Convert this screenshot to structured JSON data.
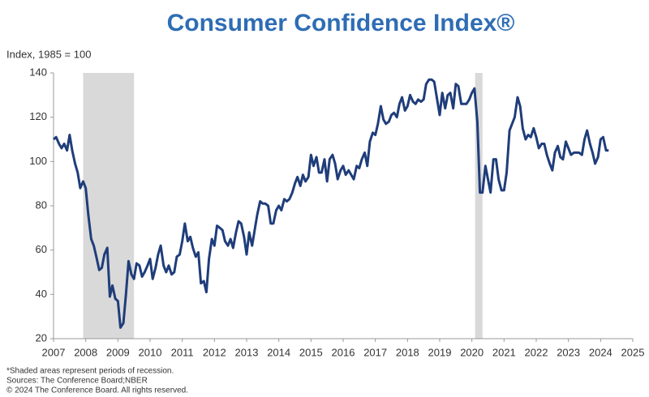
{
  "chart_data": {
    "type": "line",
    "title": "Consumer Confidence Index®",
    "y_label": "Index, 1985 = 100",
    "notes": [
      "*Shaded areas represent periods of recession.",
      "Sources: The Conference Board;NBER",
      "© 2024 The Conference Board. All rights reserved."
    ],
    "recessions": [
      {
        "start": 2007.92,
        "end": 2009.5
      },
      {
        "start": 2020.1,
        "end": 2020.33
      }
    ],
    "recession_color": "#d9d9d9",
    "xlim": [
      2007,
      2025
    ],
    "xticks": [
      2007,
      2008,
      2009,
      2010,
      2011,
      2012,
      2013,
      2014,
      2015,
      2016,
      2017,
      2018,
      2019,
      2020,
      2021,
      2022,
      2023,
      2024,
      2025
    ],
    "ylim": [
      20,
      140
    ],
    "yticks": [
      20,
      40,
      60,
      80,
      100,
      120,
      140
    ],
    "grid": false,
    "x": [
      2007.0,
      2007.08,
      2007.17,
      2007.25,
      2007.33,
      2007.42,
      2007.5,
      2007.58,
      2007.67,
      2007.75,
      2007.83,
      2007.92,
      2008.0,
      2008.08,
      2008.17,
      2008.25,
      2008.33,
      2008.42,
      2008.5,
      2008.58,
      2008.67,
      2008.75,
      2008.83,
      2008.92,
      2009.0,
      2009.08,
      2009.17,
      2009.25,
      2009.33,
      2009.42,
      2009.5,
      2009.58,
      2009.67,
      2009.75,
      2009.83,
      2009.92,
      2010.0,
      2010.08,
      2010.17,
      2010.25,
      2010.33,
      2010.42,
      2010.5,
      2010.58,
      2010.67,
      2010.75,
      2010.83,
      2010.92,
      2011.0,
      2011.08,
      2011.17,
      2011.25,
      2011.33,
      2011.42,
      2011.5,
      2011.58,
      2011.67,
      2011.75,
      2011.83,
      2011.92,
      2012.0,
      2012.08,
      2012.17,
      2012.25,
      2012.33,
      2012.42,
      2012.5,
      2012.58,
      2012.67,
      2012.75,
      2012.83,
      2012.92,
      2013.0,
      2013.08,
      2013.17,
      2013.25,
      2013.33,
      2013.42,
      2013.5,
      2013.58,
      2013.67,
      2013.75,
      2013.83,
      2013.92,
      2014.0,
      2014.08,
      2014.17,
      2014.25,
      2014.33,
      2014.42,
      2014.5,
      2014.58,
      2014.67,
      2014.75,
      2014.83,
      2014.92,
      2015.0,
      2015.08,
      2015.17,
      2015.25,
      2015.33,
      2015.42,
      2015.5,
      2015.58,
      2015.67,
      2015.75,
      2015.83,
      2015.92,
      2016.0,
      2016.08,
      2016.17,
      2016.25,
      2016.33,
      2016.42,
      2016.5,
      2016.58,
      2016.67,
      2016.75,
      2016.83,
      2016.92,
      2017.0,
      2017.08,
      2017.17,
      2017.25,
      2017.33,
      2017.42,
      2017.5,
      2017.58,
      2017.67,
      2017.75,
      2017.83,
      2017.92,
      2018.0,
      2018.08,
      2018.17,
      2018.25,
      2018.33,
      2018.42,
      2018.5,
      2018.58,
      2018.67,
      2018.75,
      2018.83,
      2018.92,
      2019.0,
      2019.08,
      2019.17,
      2019.25,
      2019.33,
      2019.42,
      2019.5,
      2019.58,
      2019.67,
      2019.75,
      2019.83,
      2019.92,
      2020.0,
      2020.08,
      2020.17,
      2020.25,
      2020.33,
      2020.42,
      2020.5,
      2020.58,
      2020.67,
      2020.75,
      2020.83,
      2020.92,
      2021.0,
      2021.08,
      2021.17,
      2021.25,
      2021.33,
      2021.42,
      2021.5,
      2021.58,
      2021.67,
      2021.75,
      2021.83,
      2021.92,
      2022.0,
      2022.08,
      2022.17,
      2022.25,
      2022.33,
      2022.42,
      2022.5,
      2022.58,
      2022.67,
      2022.75,
      2022.83,
      2022.92,
      2023.0,
      2023.08,
      2023.17,
      2023.25,
      2023.33,
      2023.42,
      2023.5,
      2023.58,
      2023.67,
      2023.75,
      2023.83,
      2023.92,
      2024.0,
      2024.08,
      2024.17,
      2024.25
    ],
    "series": [
      {
        "name": "Consumer Confidence Index",
        "color": "#1f3d7a",
        "values": [
          110,
          111,
          108,
          106,
          108,
          105,
          112,
          105,
          99,
          95,
          88,
          91,
          88,
          76,
          65,
          62,
          57,
          51,
          52,
          58,
          61,
          39,
          44,
          38,
          37,
          25,
          27,
          40,
          55,
          49,
          47,
          54,
          53,
          48,
          50,
          53,
          56,
          47,
          52,
          58,
          62,
          53,
          50,
          53,
          49,
          50,
          57,
          58,
          64,
          72,
          64,
          66,
          61,
          57,
          59,
          45,
          46,
          41,
          56,
          65,
          62,
          71,
          70,
          69,
          64,
          62,
          65,
          61,
          68,
          73,
          72,
          66,
          58,
          68,
          62,
          69,
          76,
          82,
          81,
          81,
          80,
          72,
          72,
          78,
          80,
          78,
          83,
          82,
          83,
          86,
          90,
          93,
          89,
          94,
          91,
          93,
          103,
          98,
          102,
          95,
          95,
          101,
          91,
          101,
          103,
          99,
          92,
          96,
          98,
          94,
          96,
          94,
          92,
          98,
          97,
          101,
          104,
          98,
          109,
          113,
          112,
          117,
          125,
          119,
          117,
          118,
          121,
          122,
          120,
          126,
          129,
          123,
          125,
          130,
          127,
          126,
          128,
          127,
          128,
          135,
          137,
          137,
          136,
          128,
          121,
          131,
          124,
          130,
          131,
          124,
          135,
          134,
          126,
          126,
          126,
          128,
          131,
          133,
          118,
          86,
          86,
          98,
          92,
          86,
          101,
          101,
          92,
          87,
          87,
          95,
          114,
          117,
          120,
          129,
          125,
          115,
          110,
          112,
          111,
          115,
          111,
          106,
          108,
          108,
          103,
          99,
          96,
          104,
          107,
          102,
          101,
          109,
          106,
          103,
          104,
          104,
          104,
          103,
          110,
          114,
          108,
          104,
          99,
          102,
          110,
          111,
          105,
          105
        ]
      }
    ]
  }
}
